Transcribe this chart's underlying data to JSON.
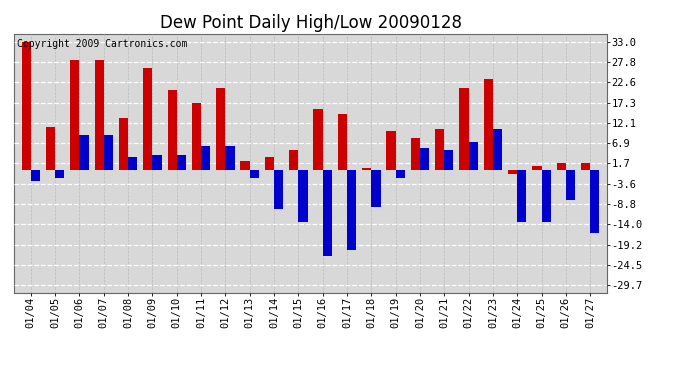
{
  "title": "Dew Point Daily High/Low 20090128",
  "copyright": "Copyright 2009 Cartronics.com",
  "dates": [
    "01/04",
    "01/05",
    "01/06",
    "01/07",
    "01/08",
    "01/09",
    "01/10",
    "01/11",
    "01/12",
    "01/13",
    "01/14",
    "01/15",
    "01/16",
    "01/17",
    "01/18",
    "01/19",
    "01/20",
    "01/21",
    "01/22",
    "01/23",
    "01/24",
    "01/25",
    "01/26",
    "01/27"
  ],
  "highs": [
    33.0,
    11.1,
    28.3,
    28.3,
    13.3,
    26.1,
    20.6,
    17.2,
    21.1,
    2.2,
    3.3,
    5.0,
    15.6,
    14.4,
    0.6,
    10.0,
    8.3,
    10.6,
    21.1,
    23.3,
    -1.1,
    1.1,
    1.7,
    1.7
  ],
  "lows": [
    -2.8,
    -2.2,
    8.9,
    8.9,
    3.3,
    3.9,
    3.9,
    6.1,
    6.1,
    -2.2,
    -10.0,
    -13.3,
    -22.2,
    -20.6,
    -9.4,
    -2.2,
    5.6,
    5.0,
    7.2,
    10.6,
    -13.3,
    -13.3,
    -7.8,
    -16.1
  ],
  "high_color": "#cc0000",
  "low_color": "#0000cc",
  "background_color": "#ffffff",
  "plot_background": "#d8d8d8",
  "yticks": [
    33.0,
    27.8,
    22.6,
    17.3,
    12.1,
    6.9,
    1.7,
    -3.6,
    -8.8,
    -14.0,
    -19.2,
    -24.5,
    -29.7
  ],
  "ylim": [
    -31.5,
    35.0
  ],
  "bar_width": 0.38,
  "title_fontsize": 12,
  "tick_fontsize": 7.5,
  "copyright_fontsize": 7
}
